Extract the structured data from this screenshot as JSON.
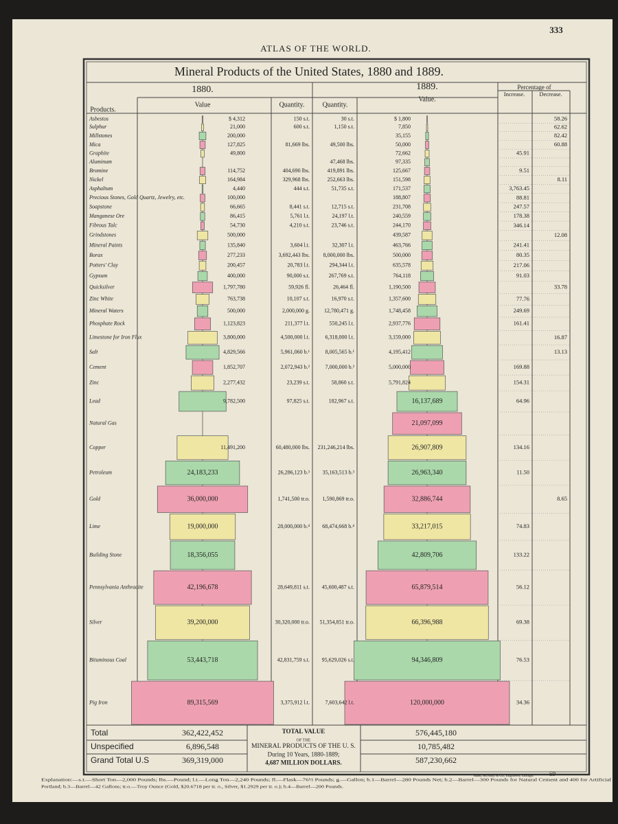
{
  "chart_data": {
    "type": "pyramid",
    "header": "ATLAS OF THE WORLD.",
    "page_number": "333",
    "title": "Mineral Products of the United States, 1880 and 1889.",
    "columns": {
      "products": "Products.",
      "value_1880": "Value",
      "quantity": "Quantity.",
      "value_1889": "Value.",
      "percentage": "Percentage of",
      "increase": "Increase.",
      "decrease": "Decrease."
    },
    "categories": [
      "Asbestos",
      "Sulphur",
      "Millstones",
      "Mica",
      "Graphite",
      "Aluminum",
      "Bromine",
      "Nickel",
      "Asphaltum",
      "Precious Stones, Gold Quartz, Jewelry, etc.",
      "Soapstone",
      "Manganese Ore",
      "Fibrous Talc",
      "Grindstones",
      "Mineral Paints",
      "Borax",
      "Potters' Clay",
      "Gypsum",
      "Quicksilver",
      "Zinc White",
      "Mineral Waters",
      "Phosphate Rock",
      "Limestone for Iron Flux",
      "Salt",
      "Cement",
      "Zinc",
      "Lead",
      "Natural Gas",
      "Copper",
      "Petroleum",
      "Gold",
      "Lime",
      "Building Stone",
      "Pennsylvania Anthracite",
      "Silver",
      "Bituminous Coal",
      "Pig Iron"
    ],
    "colors": [
      "#eea0b2",
      "#efe6a4",
      "#aad8aa"
    ],
    "series": [
      {
        "name": "1880.",
        "values": [
          4312,
          21000,
          200000,
          127825,
          49800,
          null,
          114752,
          164984,
          4440,
          100000,
          66665,
          86415,
          54730,
          500000,
          135840,
          277233,
          200457,
          400000,
          1797780,
          763738,
          500000,
          1123823,
          3800000,
          4829566,
          1852707,
          2277432,
          9782500,
          null,
          11491200,
          24183233,
          36000000,
          19000000,
          18356055,
          42196678,
          39200000,
          53443718,
          89315569
        ],
        "value_labels": [
          "$ 4,312",
          "21,000",
          "200,000",
          "127,825",
          "49,800",
          null,
          "114,752",
          "164,984",
          "4,440",
          "100,000",
          "66,665",
          "86,415",
          "54,730",
          "500,000",
          "135,840",
          "277,233",
          "200,457",
          "400,000",
          "1,797,780",
          "763,738",
          "500,000",
          "1,123,823",
          "3,800,000",
          "4,829,566",
          "1,852,707",
          "2,277,432",
          "9,782,500",
          null,
          "11,491,200",
          "24,183,233",
          "36,000,000",
          "19,000,000",
          "18,356,055",
          "42,196,678",
          "39,200,000",
          "53,443,718",
          "89,315,569"
        ],
        "quantities": [
          "150 s.t.",
          "600 s.t.",
          null,
          "81,669 lbs.",
          null,
          null,
          "404,690 lbs.",
          "329,968 lbs.",
          "444 s.t.",
          null,
          "8,441 s.t.",
          "5,761 l.t.",
          "4,210 s.t.",
          null,
          "3,604 l.t.",
          "3,692,443 lbs.",
          "20,783 l.t.",
          "90,000 s.t.",
          "59,926 fl.",
          "10,107 s.t.",
          "2,000,000 g.",
          "211,377 l.t.",
          "4,500,000 l.t.",
          "5,961,060 b.¹",
          "2,072,943 b.²",
          "23,239 s.t.",
          "97,825 s.t.",
          null,
          "60,480,000 lbs.",
          "26,286,123 b.³",
          "1,741,500 tr.o.",
          "28,000,000 b.⁴",
          null,
          "28,649,811 s.t.",
          "30,320,000 tr.o.",
          "42,831,759 s.t.",
          "3,375,912 l.t."
        ]
      },
      {
        "name": "1889.",
        "values": [
          1800,
          7850,
          35155,
          50000,
          72662,
          97335,
          125667,
          151598,
          171537,
          188807,
          231708,
          240559,
          244170,
          439587,
          463766,
          500000,
          635578,
          764118,
          1190500,
          1357600,
          1748458,
          2937776,
          3159000,
          4195412,
          5000000,
          5791824,
          16137689,
          21097099,
          26907809,
          26963340,
          32886744,
          33217015,
          42809706,
          65879514,
          66396988,
          94346809,
          120000000
        ],
        "value_labels": [
          "$ 1,800",
          "7,850",
          "35,155",
          "50,000",
          "72,662",
          "97,335",
          "125,667",
          "151,598",
          "171,537",
          "188,807",
          "231,708",
          "240,559",
          "244,170",
          "439,587",
          "463,766",
          "500,000",
          "635,578",
          "764,118",
          "1,190,500",
          "1,357,600",
          "1,748,458",
          "2,937,776",
          "3,159,000",
          "4,195,412",
          "5,000,000",
          "5,791,824",
          "16,137,689",
          "21,097,099",
          "26,907,809",
          "26,963,340",
          "32,886,744",
          "33,217,015",
          "42,809,706",
          "65,879,514",
          "66,396,988",
          "94,346,809",
          "120,000,000"
        ],
        "quantities": [
          "30 s.t.",
          "1,150 s.t.",
          null,
          "49,500 lbs.",
          null,
          "47,468 lbs.",
          "419,891 lbs.",
          "252,663 lbs.",
          "51,735 s.t.",
          null,
          "12,715 s.t.",
          "24,197 l.t.",
          "23,746 s.t.",
          null,
          "32,307 l.t.",
          "8,000,000 lbs.",
          "294,344 l.t.",
          "267,769 s.t.",
          "26,464 fl.",
          "16,970 s.t.",
          "12,780,471 g.",
          "550,245 l.t.",
          "6,318,000 l.t.",
          "8,005,565 b.¹",
          "7,000,000 b.²",
          "58,860 s.t.",
          "182,967 s.t.",
          null,
          "231,246,214 lbs.",
          "35,163,513 b.³",
          "1,590,869 tr.o.",
          "68,474,668 b.⁴",
          null,
          "45,600,487 s.t.",
          "51,354,851 tr.o.",
          "95,629,026 s.t.",
          "7,603,642 l.t."
        ]
      }
    ],
    "increase": [
      null,
      null,
      null,
      null,
      "45.91",
      null,
      "9.51",
      null,
      "3,763.45",
      "88.81",
      "247.57",
      "178.38",
      "346.14",
      null,
      "241.41",
      "80.35",
      "217.06",
      "91.03",
      null,
      "77.76",
      "249.69",
      "161.41",
      null,
      null,
      "169.88",
      "154.31",
      "64.96",
      null,
      "134.16",
      "11.50",
      null,
      "74.83",
      "133.22",
      "56.12",
      "69.38",
      "76.53",
      "34.36"
    ],
    "decrease": [
      "58.26",
      "62.62",
      "82.42",
      "60.88",
      null,
      null,
      null,
      "8.11",
      null,
      null,
      null,
      null,
      null,
      "12.08",
      null,
      null,
      null,
      null,
      "33.78",
      null,
      null,
      null,
      "16.87",
      "13.13",
      null,
      null,
      null,
      null,
      null,
      null,
      "8.65",
      null,
      null,
      null,
      null,
      null,
      null
    ],
    "totals": [
      {
        "label": "Total",
        "values": [
          "362,422,452",
          "576,445,180"
        ]
      },
      {
        "label": "Unspecified",
        "values": [
          "6,896,548",
          "10,785,482"
        ]
      },
      {
        "label": "Grand Total U.S",
        "values": [
          "369,319,000",
          "587,230,662"
        ]
      }
    ],
    "center_note": [
      "TOTAL VALUE",
      "OF THE",
      "MINERAL PRODUCTS OF THE U. S.",
      "During 10 Years, 1880-1889;",
      "4,687 MILLION DOLLARS."
    ],
    "footnote": [
      "Explanation:—s.t.—Short Ton—2,000 Pounds; lbs.—Pound; l.t.—Long Ton—2,240 Pounds; fl.—Flask—76½ Pounds; g.—Gallon; b.1—Barrel—280 Pounds Net; b.2—Barrel—300 Pounds for Natural Cement and 400 for Artificial",
      "Portland; b.3—Barrel—42 Gallons; tr.o.—Troy Ounce (Gold, $20.6718 per tr. o., Silver, $1.2929 per tr. o.); b.4—Barrel—200 Pounds."
    ],
    "imprint": "Rand, McNally & Co., Engravers, Chicago.",
    "plate_number": "59"
  }
}
